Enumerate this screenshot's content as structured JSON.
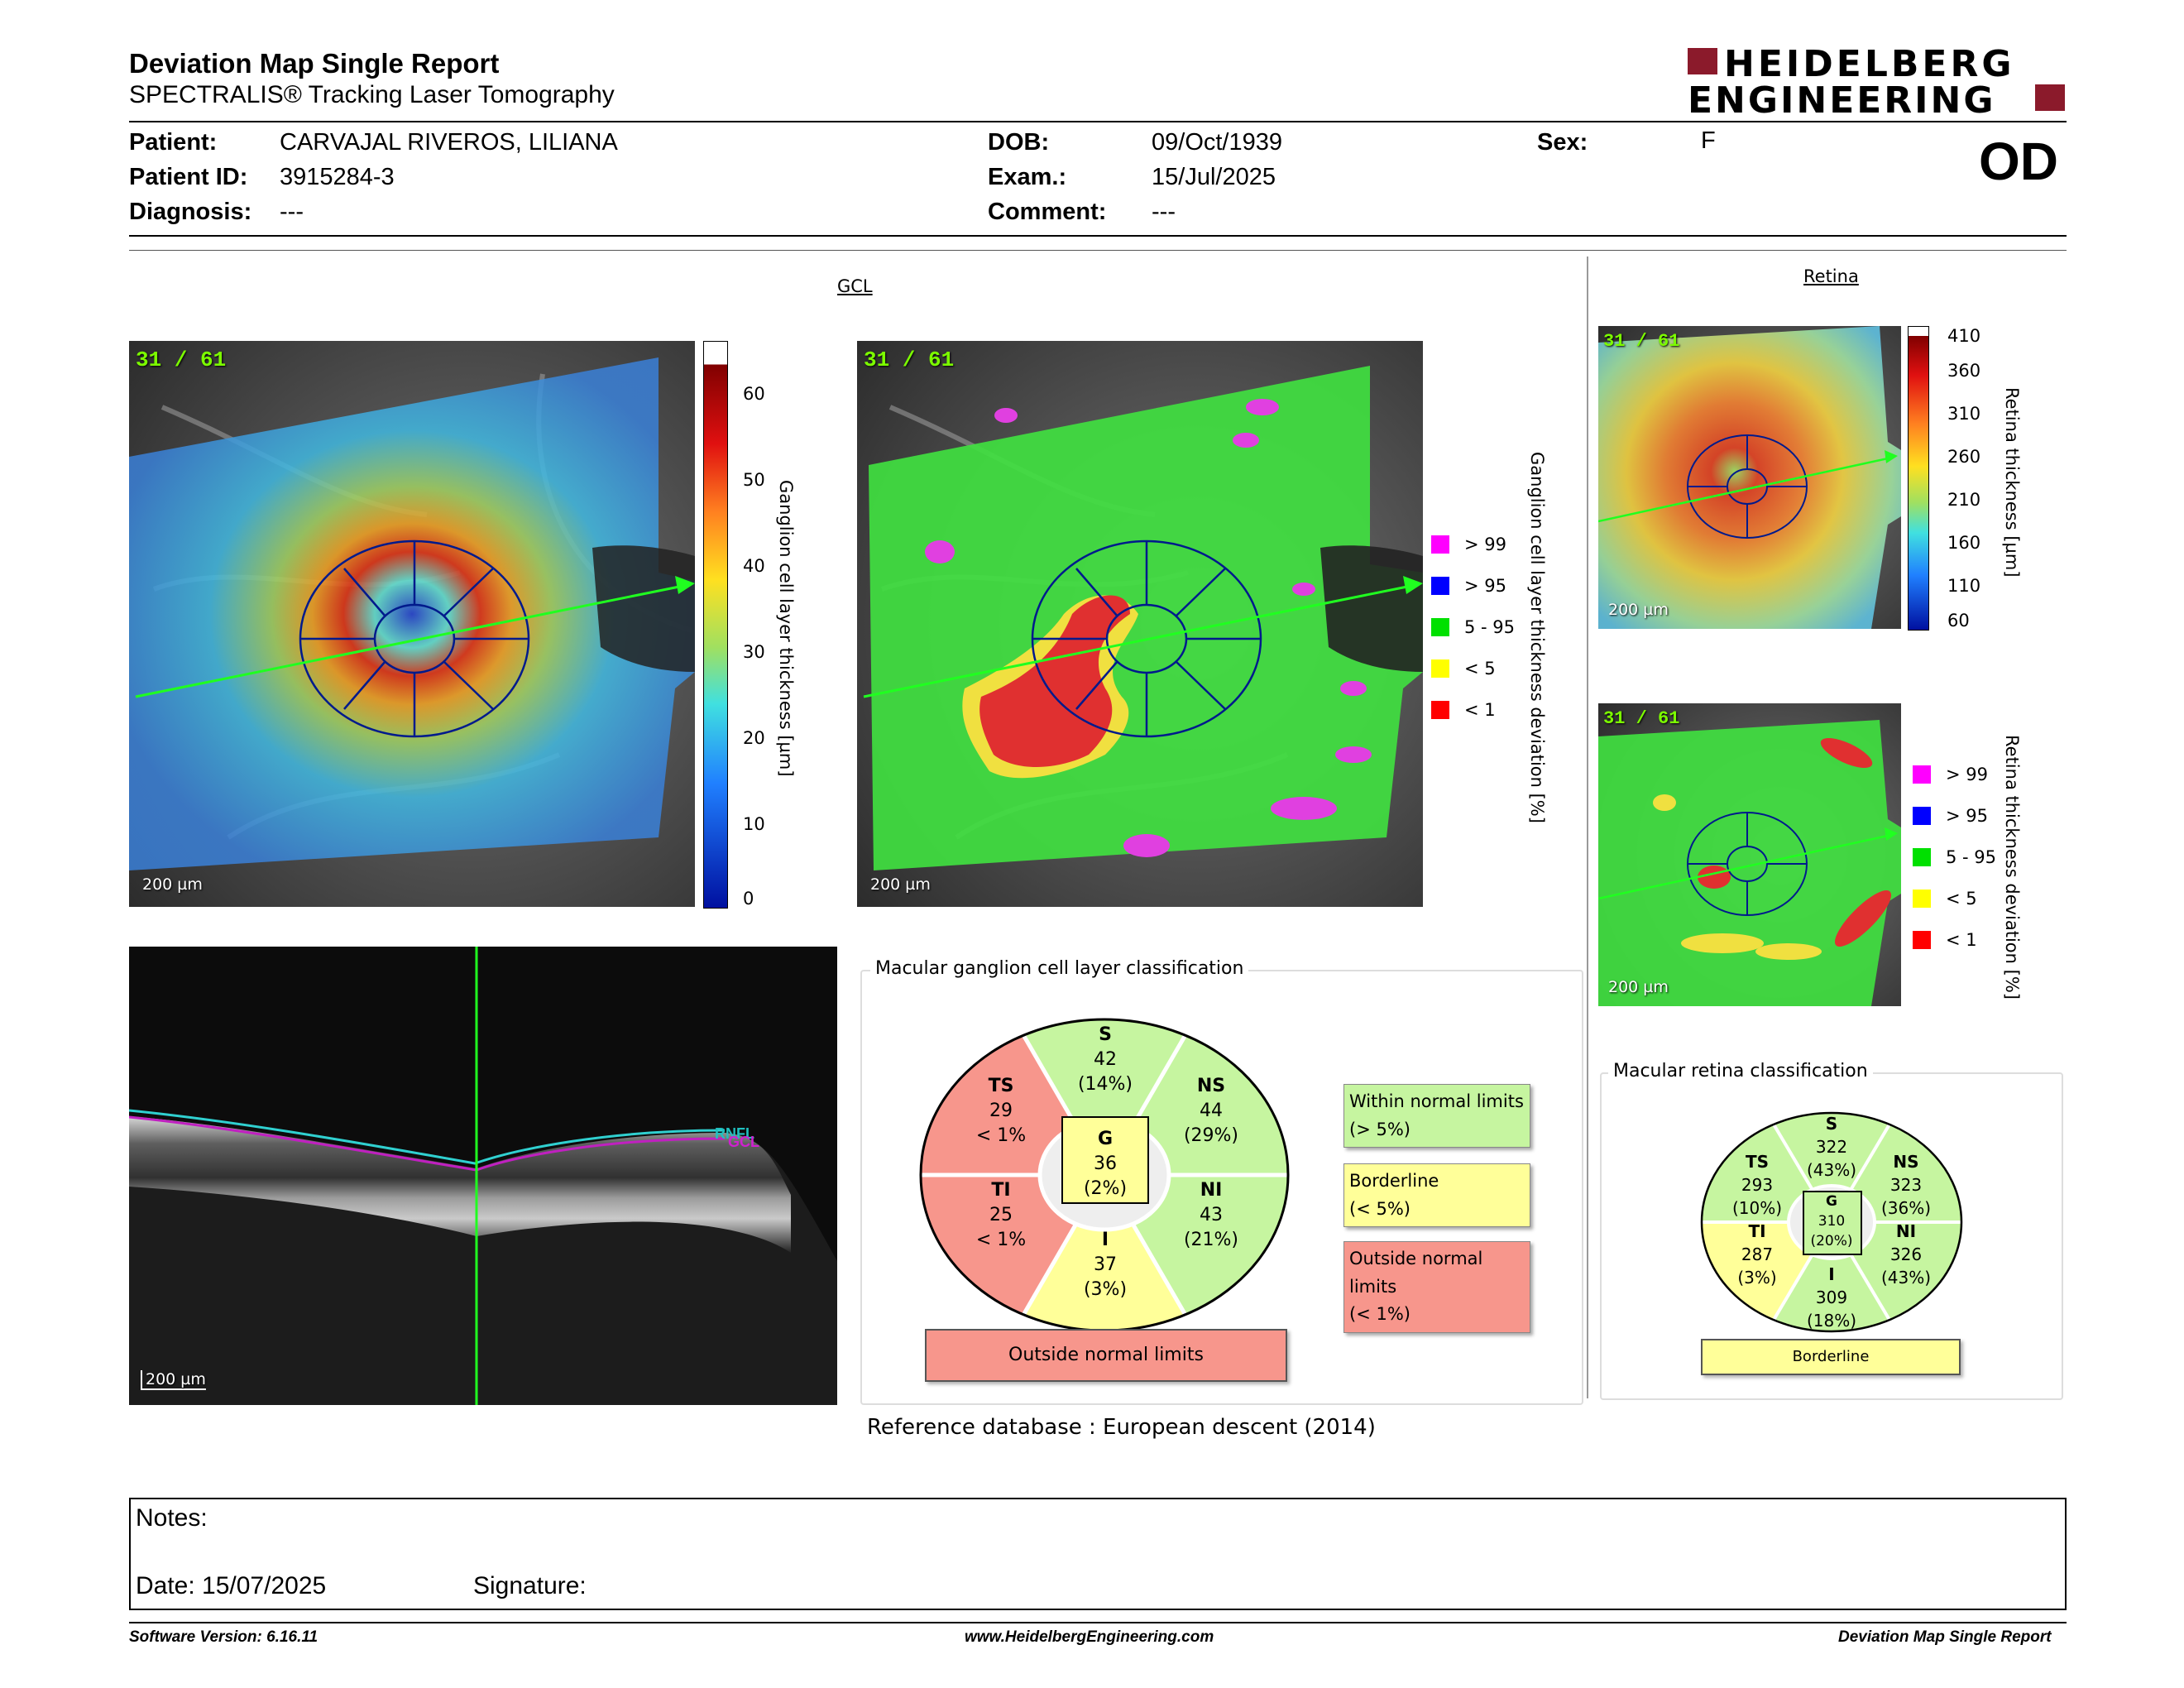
{
  "header": {
    "title": "Deviation Map Single Report",
    "subtitle": "SPECTRALIS® Tracking Laser Tomography",
    "logo_line1": "HEIDELBERG",
    "logo_line2": "ENGINEERING",
    "eye": "OD"
  },
  "patient": {
    "name_label": "Patient:",
    "name": "CARVAJAL RIVEROS, LILIANA",
    "id_label": "Patient ID:",
    "id": "3915284-3",
    "diagnosis_label": "Diagnosis:",
    "diagnosis": "---",
    "dob_label": "DOB:",
    "dob": "09/Oct/1939",
    "exam_label": "Exam.:",
    "exam": "15/Jul/2025",
    "comment_label": "Comment:",
    "comment": "---",
    "sex_label": "Sex:",
    "sex": "F"
  },
  "gcl": {
    "section_title": "GCL",
    "frame_label": "31 / 61",
    "scale_label": "200 µm",
    "thickness_axis_label": "Ganglion cell layer thickness [µm]",
    "thickness_ticks": [
      "60",
      "50",
      "40",
      "30",
      "20",
      "10",
      "0"
    ],
    "deviation_axis_label": "Ganglion cell layer thickness deviation [%]",
    "legend": [
      {
        "label": "> 99",
        "color": "#ff00ff"
      },
      {
        "label": "> 95",
        "color": "#0000ff"
      },
      {
        "label": "5 - 95",
        "color": "#00e000"
      },
      {
        "label": "< 5",
        "color": "#ffff00"
      },
      {
        "label": "< 1",
        "color": "#ff0000"
      }
    ]
  },
  "bscan": {
    "scale_label": "200 µm",
    "layer_label_1": "RNFL",
    "layer_label_2": "GCL"
  },
  "gcl_classification": {
    "title": "Macular ganglion cell layer classification",
    "sectors": {
      "S": {
        "name": "S",
        "value": "42",
        "pct": "(14%)"
      },
      "TS": {
        "name": "TS",
        "value": "29",
        "pct": "< 1%"
      },
      "NS": {
        "name": "NS",
        "value": "44",
        "pct": "(29%)"
      },
      "G": {
        "name": "G",
        "value": "36",
        "pct": "(2%)"
      },
      "TI": {
        "name": "TI",
        "value": "25",
        "pct": "< 1%"
      },
      "NI": {
        "name": "NI",
        "value": "43",
        "pct": "(21%)"
      },
      "I": {
        "name": "I",
        "value": "37",
        "pct": "(3%)"
      }
    },
    "legend": {
      "within_1": "Within normal limits",
      "within_2": "(> 5%)",
      "border_1": "Borderline",
      "border_2": "(< 5%)",
      "outside_1": "Outside normal limits",
      "outside_2": "(< 1%)"
    },
    "result": "Outside normal limits",
    "colors": {
      "green": "#c6f5a0",
      "yellow": "#ffff99",
      "red": "#f7968c"
    }
  },
  "reference_db": "Reference database : European descent (2014)",
  "retina": {
    "section_title": "Retina",
    "frame_label": "31 / 61",
    "scale_label": "200 µm",
    "thickness_axis_label": "Retina thickness [µm]",
    "thickness_ticks": [
      "410",
      "360",
      "310",
      "260",
      "210",
      "160",
      "110",
      "60"
    ],
    "deviation_axis_label": "Retina thickness deviation [%]",
    "legend": [
      {
        "label": "> 99",
        "color": "#ff00ff"
      },
      {
        "label": "> 95",
        "color": "#0000ff"
      },
      {
        "label": "5 - 95",
        "color": "#00e000"
      },
      {
        "label": "< 5",
        "color": "#ffff00"
      },
      {
        "label": "< 1",
        "color": "#ff0000"
      }
    ]
  },
  "retina_classification": {
    "title": "Macular retina classification",
    "sectors": {
      "S": {
        "name": "S",
        "value": "322",
        "pct": "(43%)"
      },
      "TS": {
        "name": "TS",
        "value": "293",
        "pct": "(10%)"
      },
      "NS": {
        "name": "NS",
        "value": "323",
        "pct": "(36%)"
      },
      "G": {
        "name": "G",
        "value": "310",
        "pct": "(20%)"
      },
      "TI": {
        "name": "TI",
        "value": "287",
        "pct": "(3%)"
      },
      "NI": {
        "name": "NI",
        "value": "326",
        "pct": "(43%)"
      },
      "I": {
        "name": "I",
        "value": "309",
        "pct": "(18%)"
      }
    },
    "result": "Borderline"
  },
  "notes": {
    "notes_label": "Notes:",
    "date_label": "Date: 15/07/2025",
    "signature_label": "Signature:"
  },
  "footer": {
    "software": "Software Version: 6.16.11",
    "website": "www.HeidelbergEngineering.com",
    "report_name": "Deviation Map Single Report"
  }
}
